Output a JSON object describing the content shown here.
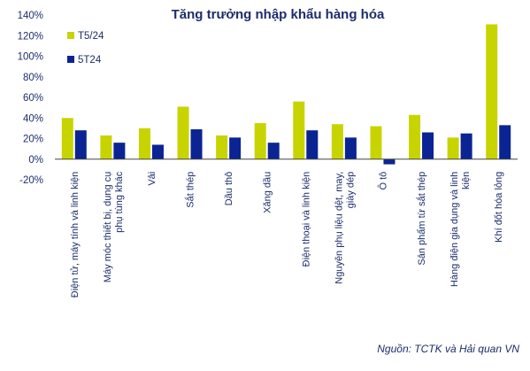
{
  "chart_data": {
    "type": "bar",
    "title": "Tăng trưởng nhập khẩu hàng hóa",
    "source": "Nguồn: TCTK và Hải quan VN",
    "y_ticks": [
      "140%",
      "120%",
      "100%",
      "80%",
      "60%",
      "40%",
      "20%",
      "0%",
      "-20%"
    ],
    "ylim": [
      -20,
      140
    ],
    "grid": false,
    "legend_position": "top-left",
    "categories": [
      [
        "Điện tử, máy tính và linh kiện"
      ],
      [
        "Máy móc thiết bị, dụng cụ",
        "phụ tùng khác"
      ],
      [
        "Vải"
      ],
      [
        "Sắt thép"
      ],
      [
        "Dầu thô"
      ],
      [
        "Xăng dầu"
      ],
      [
        "Điện thoại và linh kiện"
      ],
      [
        "Nguyên phụ liệu dệt, may,",
        "giày dép"
      ],
      [
        "Ô tô"
      ],
      [
        "Sản phẩm từ sắt thép"
      ],
      [
        "Hàng điện gia dụng và linh",
        "kiện"
      ],
      [
        "Khí đốt hóa lỏng"
      ]
    ],
    "series": [
      {
        "name": "T5/24",
        "color": "#c8d400",
        "values": [
          40,
          23,
          30,
          51,
          23,
          35,
          56,
          34,
          32,
          43,
          21,
          131
        ]
      },
      {
        "name": "5T24",
        "color": "#0a2493",
        "values": [
          28,
          16,
          14,
          29,
          21,
          16,
          28,
          21,
          -5,
          26,
          25,
          33
        ]
      }
    ]
  }
}
